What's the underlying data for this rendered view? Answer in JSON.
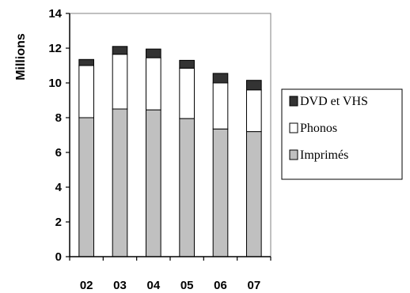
{
  "chart_data": {
    "type": "bar",
    "stacked": true,
    "categories": [
      "02",
      "03",
      "04",
      "05",
      "06",
      "07"
    ],
    "series": [
      {
        "name": "Imprimés",
        "color": "#c0c0c0",
        "values": [
          8.0,
          8.5,
          8.45,
          7.95,
          7.35,
          7.2
        ]
      },
      {
        "name": "Phonos",
        "color": "#ffffff",
        "values": [
          3.0,
          3.15,
          3.0,
          2.9,
          2.65,
          2.4
        ]
      },
      {
        "name": "DVD et VHS",
        "color": "#333333",
        "values": [
          0.35,
          0.45,
          0.5,
          0.45,
          0.55,
          0.55
        ]
      }
    ],
    "title": "",
    "xlabel": "",
    "ylabel": "Millions",
    "ylim": [
      0,
      14
    ],
    "yticks": [
      0,
      2,
      4,
      6,
      8,
      10,
      12,
      14
    ],
    "grid": false,
    "legend_position": "right"
  }
}
